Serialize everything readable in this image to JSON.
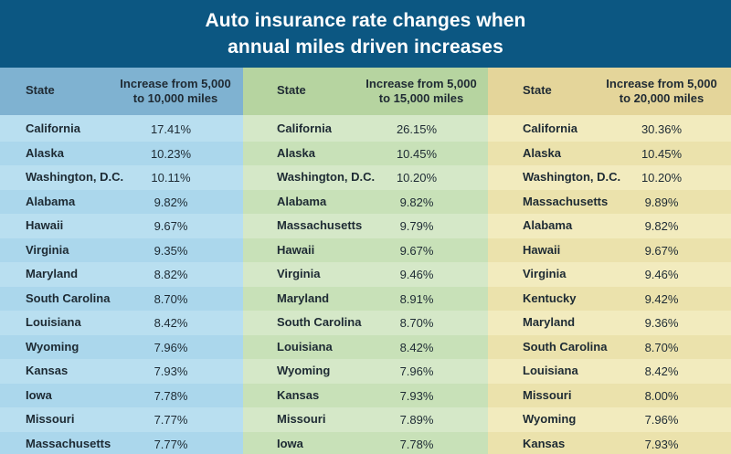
{
  "title": {
    "line1": "Auto insurance rate changes when",
    "line2": "annual miles driven increases"
  },
  "colors": {
    "title_bg": "#0c5782",
    "panel_1_header": "#7fb2d1",
    "panel_1_body": "#b9dff0",
    "panel_2_header": "#b6d4a0",
    "panel_2_body": "#d5e8c8",
    "panel_3_header": "#e4d59a",
    "panel_3_body": "#f2ebbe"
  },
  "chart_data": {
    "type": "table",
    "title": "Auto insurance rate changes when annual miles driven increases",
    "tables": [
      {
        "state_header": "State",
        "value_header_line1": "Increase from 5,000",
        "value_header_line2": "to 10,000 miles",
        "rows": [
          {
            "state": "California",
            "value": "17.41%"
          },
          {
            "state": "Alaska",
            "value": "10.23%"
          },
          {
            "state": "Washington, D.C.",
            "value": "10.11%"
          },
          {
            "state": "Alabama",
            "value": "9.82%"
          },
          {
            "state": "Hawaii",
            "value": "9.67%"
          },
          {
            "state": "Virginia",
            "value": "9.35%"
          },
          {
            "state": "Maryland",
            "value": "8.82%"
          },
          {
            "state": "South Carolina",
            "value": "8.70%"
          },
          {
            "state": "Louisiana",
            "value": "8.42%"
          },
          {
            "state": "Wyoming",
            "value": "7.96%"
          },
          {
            "state": "Kansas",
            "value": "7.93%"
          },
          {
            "state": "Iowa",
            "value": "7.78%"
          },
          {
            "state": "Missouri",
            "value": "7.77%"
          },
          {
            "state": "Massachusetts",
            "value": "7.77%"
          }
        ]
      },
      {
        "state_header": "State",
        "value_header_line1": "Increase from 5,000",
        "value_header_line2": "to 15,000 miles",
        "rows": [
          {
            "state": "California",
            "value": "26.15%"
          },
          {
            "state": "Alaska",
            "value": "10.45%"
          },
          {
            "state": "Washington, D.C.",
            "value": "10.20%"
          },
          {
            "state": "Alabama",
            "value": "9.82%"
          },
          {
            "state": "Massachusetts",
            "value": "9.79%"
          },
          {
            "state": "Hawaii",
            "value": "9.67%"
          },
          {
            "state": "Virginia",
            "value": "9.46%"
          },
          {
            "state": "Maryland",
            "value": "8.91%"
          },
          {
            "state": "South Carolina",
            "value": "8.70%"
          },
          {
            "state": "Louisiana",
            "value": "8.42%"
          },
          {
            "state": "Wyoming",
            "value": "7.96%"
          },
          {
            "state": "Kansas",
            "value": "7.93%"
          },
          {
            "state": "Missouri",
            "value": "7.89%"
          },
          {
            "state": "Iowa",
            "value": "7.78%"
          }
        ]
      },
      {
        "state_header": "State",
        "value_header_line1": "Increase from 5,000",
        "value_header_line2": "to 20,000 miles",
        "rows": [
          {
            "state": "California",
            "value": "30.36%"
          },
          {
            "state": "Alaska",
            "value": "10.45%"
          },
          {
            "state": "Washington, D.C.",
            "value": "10.20%"
          },
          {
            "state": "Massachusetts",
            "value": "9.89%"
          },
          {
            "state": "Alabama",
            "value": "9.82%"
          },
          {
            "state": "Hawaii",
            "value": "9.67%"
          },
          {
            "state": "Virginia",
            "value": "9.46%"
          },
          {
            "state": "Kentucky",
            "value": "9.42%"
          },
          {
            "state": "Maryland",
            "value": "9.36%"
          },
          {
            "state": "South Carolina",
            "value": "8.70%"
          },
          {
            "state": "Louisiana",
            "value": "8.42%"
          },
          {
            "state": "Missouri",
            "value": "8.00%"
          },
          {
            "state": "Wyoming",
            "value": "7.96%"
          },
          {
            "state": "Kansas",
            "value": "7.93%"
          }
        ]
      }
    ]
  }
}
